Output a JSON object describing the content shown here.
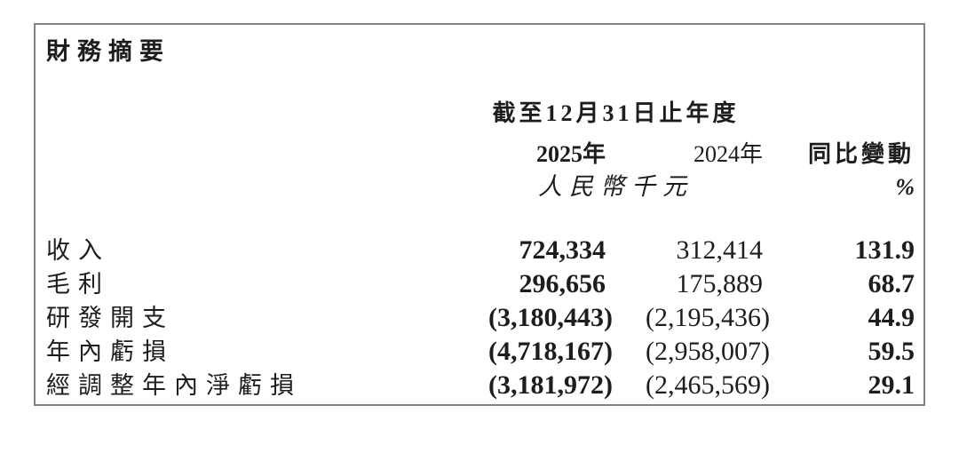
{
  "page": {
    "background": "#ffffff",
    "text_color": "#1d1d1d",
    "border_color": "#828282"
  },
  "table": {
    "title": "財務摘要",
    "period_header": "截至12月31日止年度",
    "columns": {
      "y2025": "2025年",
      "y2024": "2024年",
      "yoy": "同比變動"
    },
    "unit_label": "人民幣千元",
    "unit_pct": "%",
    "rows": [
      {
        "label": "收入",
        "y2025": "724,334",
        "y2024": "312,414",
        "yoy": "131.9"
      },
      {
        "label": "毛利",
        "y2025": "296,656",
        "y2024": "175,889",
        "yoy": "68.7"
      },
      {
        "label": "研發開支",
        "y2025": "(3,180,443)",
        "y2024": "(2,195,436)",
        "yoy": "44.9"
      },
      {
        "label": "年內虧損",
        "y2025": "(4,718,167)",
        "y2024": "(2,958,007)",
        "yoy": "59.5"
      },
      {
        "label": "經調整年內淨虧損",
        "y2025": "(3,181,972)",
        "y2024": "(2,465,569)",
        "yoy": "29.1"
      }
    ]
  }
}
